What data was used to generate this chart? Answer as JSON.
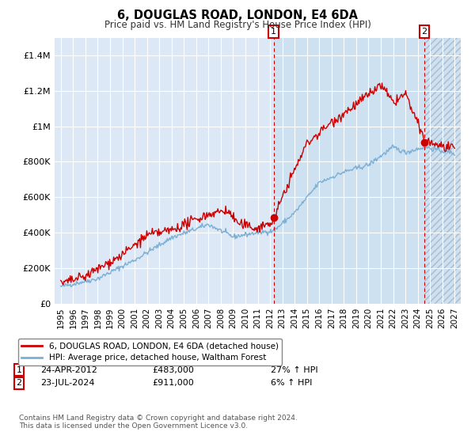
{
  "title": "6, DOUGLAS ROAD, LONDON, E4 6DA",
  "subtitle": "Price paid vs. HM Land Registry's House Price Index (HPI)",
  "ylim": [
    0,
    1500000
  ],
  "yticks": [
    0,
    200000,
    400000,
    600000,
    800000,
    1000000,
    1200000,
    1400000
  ],
  "ytick_labels": [
    "£0",
    "£200K",
    "£400K",
    "£600K",
    "£800K",
    "£1M",
    "£1.2M",
    "£1.4M"
  ],
  "legend_line1": "6, DOUGLAS ROAD, LONDON, E4 6DA (detached house)",
  "legend_line2": "HPI: Average price, detached house, Waltham Forest",
  "line1_color": "#cc0000",
  "line2_color": "#7bafd4",
  "annotation1_date": "24-APR-2012",
  "annotation1_price": "£483,000",
  "annotation1_hpi": "27% ↑ HPI",
  "annotation2_date": "23-JUL-2024",
  "annotation2_price": "£911,000",
  "annotation2_hpi": "6% ↑ HPI",
  "footnote": "Contains HM Land Registry data © Crown copyright and database right 2024.\nThis data is licensed under the Open Government Licence v3.0.",
  "vline1_x": 2012.3,
  "vline2_x": 2024.55,
  "sale1_y": 483000,
  "sale2_y": 911000,
  "highlight_start": 2012.3,
  "hatch_start": 2024.55,
  "xmin": 1994.5,
  "xmax": 2027.5,
  "background_color": "#ffffff",
  "plot_bg_color": "#dce8f5",
  "grid_color": "#ffffff"
}
